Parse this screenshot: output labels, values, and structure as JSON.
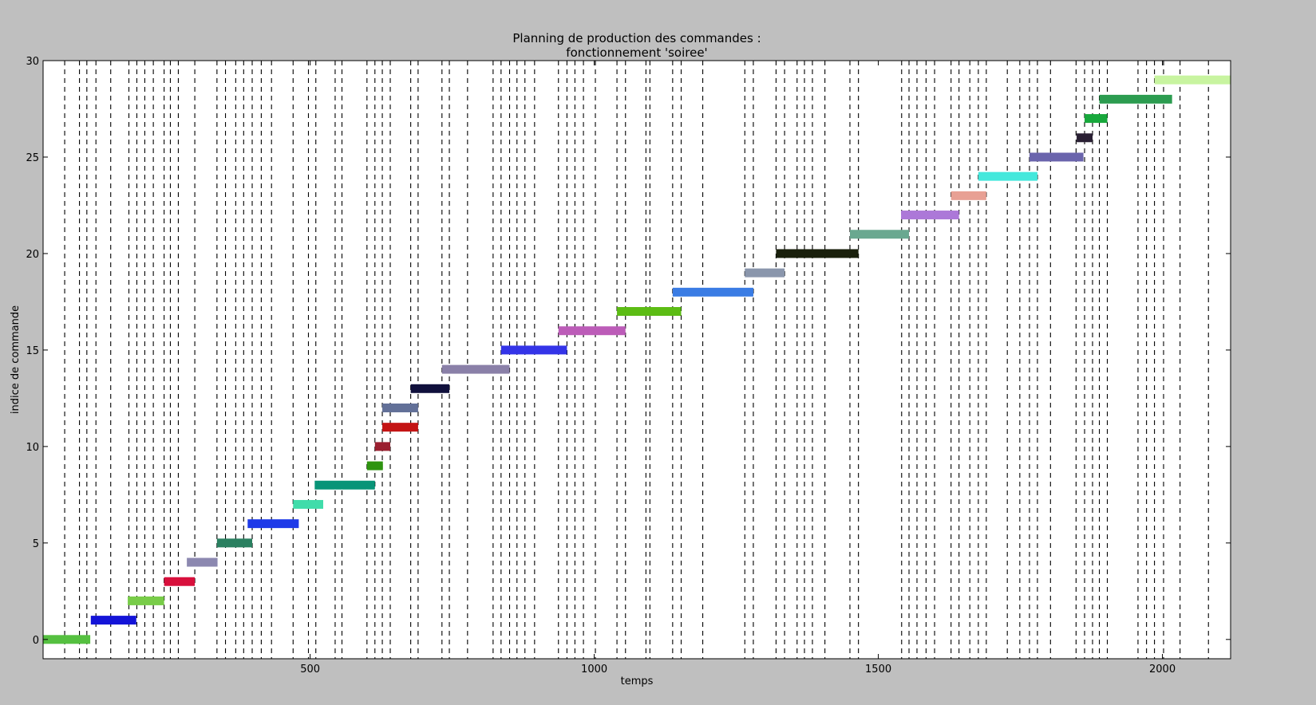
{
  "chart_data": {
    "type": "gantt",
    "title_line1": "Planning de production des commandes :",
    "title_line2": "fonctionnement 'soiree'",
    "xlabel": "temps",
    "ylabel": "indice de commande",
    "xlim": [
      30,
      2120
    ],
    "ylim": [
      -1,
      30
    ],
    "xticks": [
      500,
      1000,
      1500,
      2000
    ],
    "xtick_labels": [
      "500",
      "1000",
      "1500",
      "2000"
    ],
    "yticks": [
      0,
      5,
      10,
      15,
      20,
      25,
      30
    ],
    "ytick_labels": [
      "0",
      "5",
      "10",
      "15",
      "20",
      "25",
      "30"
    ],
    "grid": false,
    "tasks": [
      {
        "y": 0,
        "start": 30,
        "end": 113,
        "color": "#55c040"
      },
      {
        "y": 1,
        "start": 114,
        "end": 194,
        "color": "#1414d8"
      },
      {
        "y": 2,
        "start": 179,
        "end": 243,
        "color": "#78cc48"
      },
      {
        "y": 3,
        "start": 243,
        "end": 297,
        "color": "#d8103c"
      },
      {
        "y": 4,
        "start": 283,
        "end": 337,
        "color": "#8c88b0"
      },
      {
        "y": 5,
        "start": 336,
        "end": 398,
        "color": "#2a8060"
      },
      {
        "y": 6,
        "start": 390,
        "end": 480,
        "color": "#1e3ae8"
      },
      {
        "y": 7,
        "start": 470,
        "end": 523,
        "color": "#40dcaa"
      },
      {
        "y": 8,
        "start": 508,
        "end": 614,
        "color": "#089478"
      },
      {
        "y": 9,
        "start": 600,
        "end": 628,
        "color": "#2e9410"
      },
      {
        "y": 10,
        "start": 614,
        "end": 641,
        "color": "#9a2030"
      },
      {
        "y": 11,
        "start": 627,
        "end": 690,
        "color": "#c41414"
      },
      {
        "y": 12,
        "start": 627,
        "end": 690,
        "color": "#627098"
      },
      {
        "y": 13,
        "start": 677,
        "end": 745,
        "color": "#10103c"
      },
      {
        "y": 14,
        "start": 732,
        "end": 851,
        "color": "#8a80a8"
      },
      {
        "y": 15,
        "start": 836,
        "end": 952,
        "color": "#3434e8"
      },
      {
        "y": 16,
        "start": 937,
        "end": 1055,
        "color": "#bc5cb8"
      },
      {
        "y": 17,
        "start": 1040,
        "end": 1153,
        "color": "#5cbc14"
      },
      {
        "y": 18,
        "start": 1138,
        "end": 1280,
        "color": "#3a7ce4"
      },
      {
        "y": 19,
        "start": 1265,
        "end": 1335,
        "color": "#8a96ac"
      },
      {
        "y": 20,
        "start": 1320,
        "end": 1465,
        "color": "#1a200c"
      },
      {
        "y": 21,
        "start": 1450,
        "end": 1554,
        "color": "#6aa890"
      },
      {
        "y": 22,
        "start": 1540,
        "end": 1642,
        "color": "#ac78d8"
      },
      {
        "y": 23,
        "start": 1628,
        "end": 1690,
        "color": "#e8a094"
      },
      {
        "y": 24,
        "start": 1676,
        "end": 1780,
        "color": "#44e8dc"
      },
      {
        "y": 25,
        "start": 1766,
        "end": 1861,
        "color": "#6a64ac"
      },
      {
        "y": 26,
        "start": 1849,
        "end": 1877,
        "color": "#2a2034"
      },
      {
        "y": 27,
        "start": 1863,
        "end": 1903,
        "color": "#18a83c"
      },
      {
        "y": 28,
        "start": 1889,
        "end": 2017,
        "color": "#2c9c50"
      },
      {
        "y": 29,
        "start": 1986,
        "end": 2120,
        "color": "#c8f4a0"
      }
    ],
    "vlines": [
      68,
      94,
      107,
      123,
      149,
      181,
      195,
      209,
      224,
      243,
      254,
      268,
      297,
      336,
      351,
      369,
      383,
      398,
      414,
      432,
      470,
      497,
      510,
      544,
      556,
      600,
      614,
      627,
      641,
      677,
      690,
      732,
      745,
      777,
      822,
      836,
      851,
      864,
      878,
      895,
      937,
      952,
      966,
      981,
      1002,
      1040,
      1055,
      1091,
      1098,
      1138,
      1153,
      1191,
      1265,
      1280,
      1320,
      1335,
      1357,
      1370,
      1384,
      1406,
      1450,
      1465,
      1541,
      1554,
      1568,
      1584,
      1599,
      1628,
      1642,
      1661,
      1676,
      1690,
      1727,
      1749,
      1766,
      1780,
      1803,
      1848,
      1863,
      1877,
      1889,
      1903,
      1957,
      1972,
      1986,
      2002,
      2031,
      2081
    ]
  }
}
